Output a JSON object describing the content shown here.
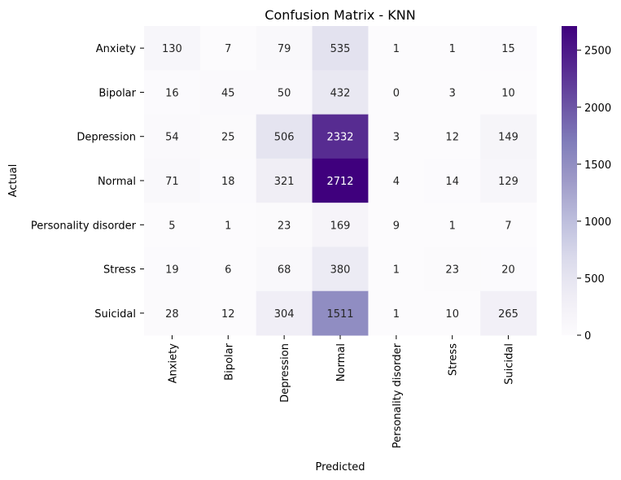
{
  "chart_data": {
    "type": "heatmap",
    "title": "Confusion Matrix - KNN",
    "xlabel": "Predicted",
    "ylabel": "Actual",
    "x_categories": [
      "Anxiety",
      "Bipolar",
      "Depression",
      "Normal",
      "Personality disorder",
      "Stress",
      "Suicidal"
    ],
    "y_categories": [
      "Anxiety",
      "Bipolar",
      "Depression",
      "Normal",
      "Personality disorder",
      "Stress",
      "Suicidal"
    ],
    "values": [
      [
        130,
        7,
        79,
        535,
        1,
        1,
        15
      ],
      [
        16,
        45,
        50,
        432,
        0,
        3,
        10
      ],
      [
        54,
        25,
        506,
        2332,
        3,
        12,
        149
      ],
      [
        71,
        18,
        321,
        2712,
        4,
        14,
        129
      ],
      [
        5,
        1,
        23,
        169,
        9,
        1,
        7
      ],
      [
        19,
        6,
        68,
        380,
        1,
        23,
        20
      ],
      [
        28,
        12,
        304,
        1511,
        1,
        10,
        265
      ]
    ],
    "colormap": "Purples",
    "colorbar": {
      "range": [
        0,
        2712
      ],
      "ticks": [
        0,
        500,
        1000,
        1500,
        2000,
        2500
      ]
    },
    "colors": {
      "low": "#fcfbfd",
      "high": "#3f007d"
    },
    "annotations": true,
    "grid": false
  }
}
